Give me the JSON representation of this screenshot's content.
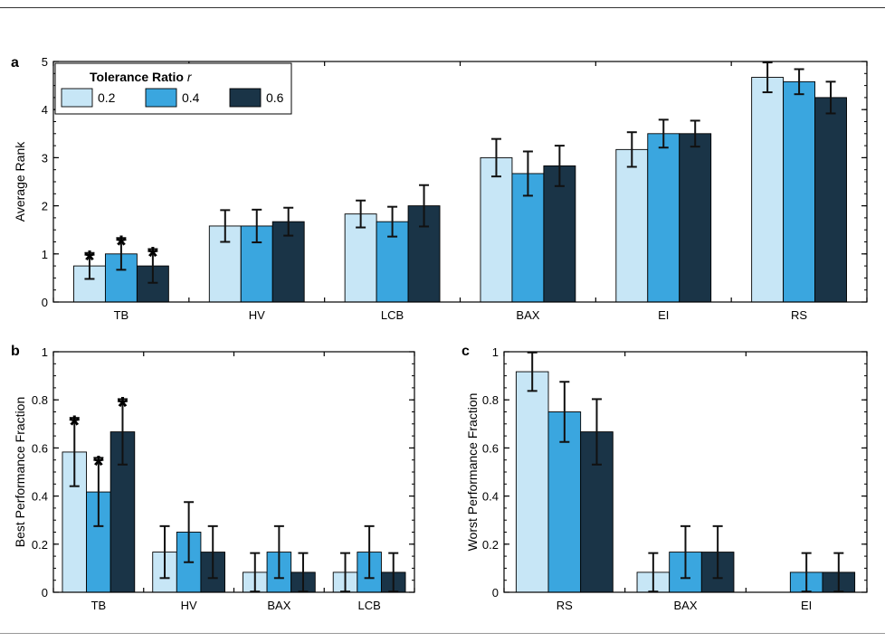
{
  "colors": {
    "s1": "#c7e6f6",
    "s2": "#3aa6df",
    "s3": "#1a3447",
    "error": "#111111",
    "axis": "#000000"
  },
  "chart_data": [
    {
      "panel_label": "a",
      "type": "bar",
      "ylabel": "Average Rank",
      "xlabel": "",
      "ylim": [
        0,
        5
      ],
      "yticks": [
        0,
        1,
        2,
        3,
        4,
        5
      ],
      "ytick_labels": [
        "0",
        "1",
        "2",
        "3",
        "4",
        "5"
      ],
      "categories": [
        "TB",
        "HV",
        "LCB",
        "BAX",
        "EI",
        "RS"
      ],
      "legend": {
        "title": "Tolerance Ratio ",
        "title_symbol": "r",
        "placement": "top-left"
      },
      "series": [
        {
          "name": "0.2",
          "values": [
            0.75,
            1.58,
            1.83,
            3.0,
            3.17,
            4.67
          ],
          "err": [
            0.27,
            0.33,
            0.28,
            0.39,
            0.36,
            0.31
          ]
        },
        {
          "name": "0.4",
          "values": [
            1.0,
            1.58,
            1.67,
            2.67,
            3.5,
            4.58
          ],
          "err": [
            0.33,
            0.34,
            0.31,
            0.46,
            0.29,
            0.26
          ]
        },
        {
          "name": "0.6",
          "values": [
            0.75,
            1.67,
            2.0,
            2.83,
            3.5,
            4.25
          ],
          "err": [
            0.35,
            0.29,
            0.43,
            0.42,
            0.27,
            0.33
          ]
        }
      ],
      "significance": [
        {
          "category": "TB",
          "series": [
            0,
            1,
            2
          ],
          "label": "*"
        }
      ]
    },
    {
      "panel_label": "b",
      "type": "bar",
      "ylabel": "Best Performance Fraction",
      "xlabel": "",
      "ylim": [
        0,
        1
      ],
      "yticks": [
        0,
        0.2,
        0.4,
        0.6,
        0.8,
        1
      ],
      "ytick_labels": [
        "0",
        "0.2",
        "0.4",
        "0.6",
        "0.8",
        "1"
      ],
      "categories": [
        "TB",
        "HV",
        "BAX",
        "LCB"
      ],
      "series": [
        {
          "name": "0.2",
          "values": [
            0.583,
            0.167,
            0.083,
            0.083
          ],
          "err": [
            0.142,
            0.108,
            0.08,
            0.08
          ]
        },
        {
          "name": "0.4",
          "values": [
            0.417,
            0.25,
            0.167,
            0.167
          ],
          "err": [
            0.142,
            0.125,
            0.108,
            0.108
          ]
        },
        {
          "name": "0.6",
          "values": [
            0.667,
            0.167,
            0.083,
            0.083
          ],
          "err": [
            0.136,
            0.108,
            0.08,
            0.08
          ]
        }
      ],
      "significance": [
        {
          "category": "TB",
          "series": [
            0,
            1,
            2
          ],
          "label": "*"
        }
      ]
    },
    {
      "panel_label": "c",
      "type": "bar",
      "ylabel": "Worst Performance Fraction",
      "xlabel": "",
      "ylim": [
        0,
        1
      ],
      "yticks": [
        0,
        0.2,
        0.4,
        0.6,
        0.8,
        1
      ],
      "ytick_labels": [
        "0",
        "0.2",
        "0.4",
        "0.6",
        "0.8",
        "1"
      ],
      "categories": [
        "RS",
        "BAX",
        "EI"
      ],
      "series": [
        {
          "name": "0.2",
          "values": [
            0.917,
            0.083,
            0
          ],
          "err": [
            0.08,
            0.08,
            0
          ]
        },
        {
          "name": "0.4",
          "values": [
            0.75,
            0.167,
            0.083
          ],
          "err": [
            0.125,
            0.108,
            0.08
          ]
        },
        {
          "name": "0.6",
          "values": [
            0.667,
            0.167,
            0.083
          ],
          "err": [
            0.136,
            0.108,
            0.08
          ]
        }
      ],
      "significance": []
    }
  ]
}
